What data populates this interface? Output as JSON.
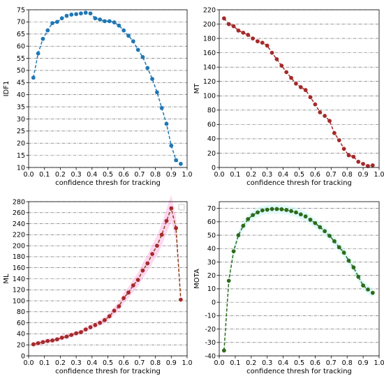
{
  "chart_data": [
    {
      "type": "line",
      "title": "",
      "xlabel": "confidence thresh for tracking",
      "ylabel": "IDF1",
      "xlim": [
        0.0,
        1.0
      ],
      "ylim": [
        10,
        75
      ],
      "xticks": [
        0.0,
        0.1,
        0.2,
        0.3,
        0.4,
        0.5,
        0.6,
        0.7,
        0.8,
        0.9,
        1.0
      ],
      "yticks": [
        10,
        15,
        20,
        25,
        30,
        35,
        40,
        45,
        50,
        55,
        60,
        65,
        70,
        75
      ],
      "grid": "horizontal dash-dot",
      "color": "#1f77b4",
      "x": [
        0.03,
        0.06,
        0.09,
        0.12,
        0.15,
        0.18,
        0.21,
        0.24,
        0.27,
        0.3,
        0.33,
        0.36,
        0.39,
        0.42,
        0.45,
        0.48,
        0.51,
        0.54,
        0.57,
        0.6,
        0.63,
        0.66,
        0.69,
        0.72,
        0.75,
        0.78,
        0.81,
        0.84,
        0.87,
        0.9,
        0.93,
        0.96
      ],
      "y": [
        47,
        57,
        63,
        66.5,
        69.5,
        70,
        71.5,
        72.5,
        73,
        73.2,
        73.5,
        73.8,
        73.5,
        71.5,
        71,
        70.3,
        70.3,
        69.8,
        68.5,
        66.5,
        64.3,
        62,
        58.5,
        55.5,
        51,
        46.5,
        41,
        34.5,
        28,
        19,
        13,
        11.5
      ]
    },
    {
      "type": "line",
      "title": "",
      "xlabel": "confidence thresh for tracking",
      "ylabel": "MT",
      "xlim": [
        0.0,
        1.0
      ],
      "ylim": [
        0,
        220
      ],
      "xticks": [
        0.0,
        0.1,
        0.2,
        0.3,
        0.4,
        0.5,
        0.6,
        0.7,
        0.8,
        0.9,
        1.0
      ],
      "yticks": [
        0,
        20,
        40,
        60,
        80,
        100,
        120,
        140,
        160,
        180,
        200,
        220
      ],
      "grid": "horizontal dash-dot",
      "color": "#a52a2a",
      "x": [
        0.03,
        0.06,
        0.09,
        0.12,
        0.15,
        0.18,
        0.21,
        0.24,
        0.27,
        0.3,
        0.33,
        0.36,
        0.39,
        0.42,
        0.45,
        0.48,
        0.51,
        0.54,
        0.57,
        0.6,
        0.63,
        0.66,
        0.69,
        0.72,
        0.75,
        0.78,
        0.81,
        0.84,
        0.87,
        0.9,
        0.93,
        0.96
      ],
      "y": [
        208,
        200,
        197,
        191,
        188,
        185,
        180,
        176,
        174,
        170,
        160,
        151,
        142,
        133,
        125,
        117,
        112,
        108,
        98,
        88,
        77,
        72,
        65,
        48,
        38,
        26,
        17,
        15,
        8,
        5,
        2,
        3
      ]
    },
    {
      "type": "line",
      "title": "",
      "xlabel": "confidence thresh for tracking",
      "ylabel": "ML",
      "xlim": [
        0.0,
        1.0
      ],
      "ylim": [
        0,
        280
      ],
      "xticks": [
        0.0,
        0.1,
        0.2,
        0.3,
        0.4,
        0.5,
        0.6,
        0.7,
        0.8,
        0.9,
        1.0
      ],
      "yticks": [
        0,
        20,
        40,
        60,
        80,
        100,
        120,
        140,
        160,
        180,
        200,
        220,
        240,
        260,
        280
      ],
      "grid": "horizontal dash-dot",
      "color": "#8b4513",
      "marker_color": "#a52a2a",
      "shade_color": "#ffb6e6",
      "legend": "empty box, top-right",
      "x": [
        0.03,
        0.06,
        0.09,
        0.12,
        0.15,
        0.18,
        0.21,
        0.24,
        0.27,
        0.3,
        0.33,
        0.36,
        0.39,
        0.42,
        0.45,
        0.48,
        0.51,
        0.54,
        0.57,
        0.6,
        0.63,
        0.66,
        0.69,
        0.72,
        0.75,
        0.78,
        0.81,
        0.84,
        0.87,
        0.9,
        0.93,
        0.96
      ],
      "y": [
        21,
        23,
        25,
        27,
        28,
        30,
        33,
        35,
        38,
        41,
        43,
        48,
        52,
        56,
        60,
        65,
        72,
        82,
        90,
        105,
        115,
        128,
        138,
        155,
        168,
        185,
        200,
        220,
        245,
        268,
        232,
        102
      ]
    },
    {
      "type": "line",
      "title": "",
      "xlabel": "confidence thresh for tracking",
      "ylabel": "MOTA",
      "xlim": [
        0.0,
        1.0
      ],
      "ylim": [
        -40,
        75
      ],
      "xticks": [
        0.0,
        0.1,
        0.2,
        0.3,
        0.4,
        0.5,
        0.6,
        0.7,
        0.8,
        0.9,
        1.0
      ],
      "yticks": [
        -40,
        -30,
        -20,
        -10,
        0,
        10,
        20,
        30,
        40,
        50,
        60,
        70
      ],
      "grid": "horizontal dash-dot",
      "color": "#2e6b1a",
      "shade_color": "#c8f5f5",
      "x": [
        0.03,
        0.06,
        0.09,
        0.12,
        0.15,
        0.18,
        0.21,
        0.24,
        0.27,
        0.3,
        0.33,
        0.36,
        0.39,
        0.42,
        0.45,
        0.48,
        0.51,
        0.54,
        0.57,
        0.6,
        0.63,
        0.66,
        0.69,
        0.72,
        0.75,
        0.78,
        0.81,
        0.84,
        0.87,
        0.9,
        0.93,
        0.96
      ],
      "y": [
        -36,
        16,
        38,
        50,
        57,
        62,
        65,
        67,
        68.5,
        69,
        69.5,
        69.5,
        69.3,
        68.8,
        68,
        67,
        65.5,
        64,
        61.5,
        59,
        56,
        53,
        49.5,
        45.5,
        41,
        37,
        31,
        26,
        19,
        12.5,
        9.5,
        7
      ]
    }
  ]
}
